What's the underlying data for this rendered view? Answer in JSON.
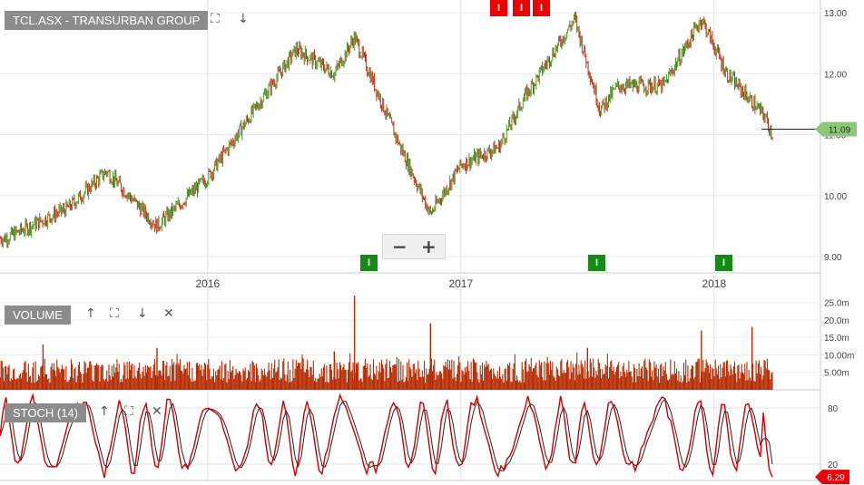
{
  "panels": {
    "price": {
      "title": "TCL.ASX - TRANSURBAN GROUP",
      "expand_icon": "expand-icon",
      "down_icon": "arrow-down-icon"
    },
    "volume": {
      "title": "VOLUME",
      "icons": [
        "arrow-up-icon",
        "expand-icon",
        "arrow-down-icon",
        "close-icon"
      ]
    },
    "stoch": {
      "title": "STOCH (14)",
      "icons": [
        "arrow-up-icon",
        "expand-icon",
        "close-icon"
      ]
    }
  },
  "zoom": {
    "minus": "−",
    "plus": "+"
  },
  "colors": {
    "up": "#4a9a28",
    "down": "#b83010",
    "volume": "#b52a00",
    "stoch_k": "#cc0000",
    "stoch_d": "#222222",
    "current_price_badge": "#8fc77a",
    "stoch_badge": "#e8000b",
    "marker_red": "#ee0000",
    "marker_green": "#168a16"
  },
  "chart_data": [
    {
      "type": "line",
      "name": "price",
      "x_ticks": [
        "2016",
        "2017",
        "2018"
      ],
      "y_ticks": [
        "9.00",
        "10.00",
        "11.00",
        "12.00",
        "13.00"
      ],
      "ylim": [
        8.9,
        13.1
      ],
      "current_price_label": "11.09",
      "x": [
        2015.2,
        2015.45,
        2015.6,
        2015.8,
        2016.0,
        2016.2,
        2016.35,
        2016.5,
        2016.58,
        2016.75,
        2016.88,
        2017.0,
        2017.15,
        2017.25,
        2017.45,
        2017.55,
        2017.62,
        2017.8,
        2017.95,
        2018.05,
        2018.2,
        2018.23
      ],
      "values": [
        9.3,
        9.8,
        10.4,
        9.5,
        10.3,
        11.5,
        12.4,
        12.0,
        12.6,
        10.9,
        9.7,
        10.5,
        10.8,
        11.6,
        12.9,
        11.4,
        11.8,
        11.8,
        12.9,
        12.0,
        11.3,
        11.0
      ],
      "markers": [
        {
          "label": "I",
          "kind": "red",
          "x": 2017.15
        },
        {
          "label": "I",
          "kind": "red",
          "x": 2017.24
        },
        {
          "label": "I",
          "kind": "red",
          "x": 2017.32
        },
        {
          "label": "I",
          "kind": "green",
          "x": 2016.64
        },
        {
          "label": "I",
          "kind": "green",
          "x": 2017.54
        },
        {
          "label": "I",
          "kind": "green",
          "x": 2018.04
        }
      ]
    },
    {
      "type": "bar",
      "name": "volume",
      "y_ticks": [
        "5.00m",
        "10.00m",
        "15.0m",
        "20.0m",
        "25.0m"
      ],
      "ylim": [
        0,
        27
      ],
      "typical_range": [
        2,
        9
      ],
      "spikes": [
        {
          "x": 2015.35,
          "value": 13
        },
        {
          "x": 2015.8,
          "value": 12
        },
        {
          "x": 2016.5,
          "value": 11
        },
        {
          "x": 2016.58,
          "value": 27
        },
        {
          "x": 2016.88,
          "value": 19
        },
        {
          "x": 2017.5,
          "value": 12
        },
        {
          "x": 2017.95,
          "value": 17
        },
        {
          "x": 2018.15,
          "value": 18
        }
      ]
    },
    {
      "type": "line",
      "name": "stochastic",
      "y_ticks": [
        "20",
        "80"
      ],
      "ylim": [
        0,
        100
      ],
      "last_value_label": "6.29"
    }
  ]
}
